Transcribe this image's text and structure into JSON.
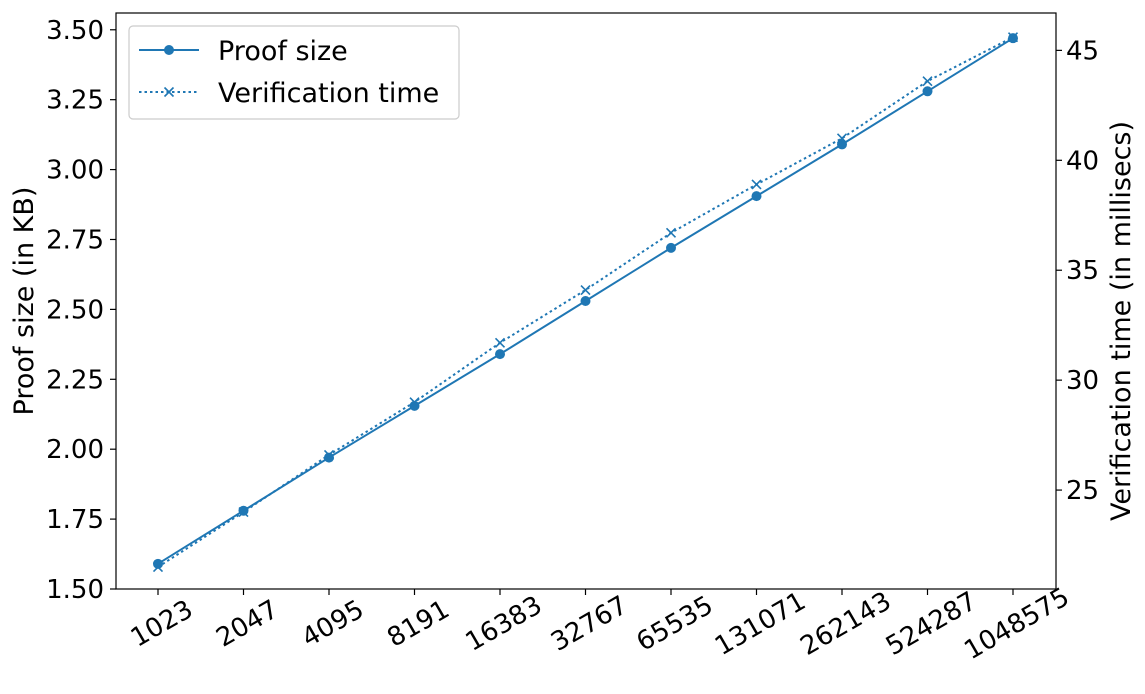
{
  "chart_data": {
    "type": "line",
    "categories": [
      "1023",
      "2047",
      "4095",
      "8191",
      "16383",
      "32767",
      "65535",
      "131071",
      "262143",
      "524287",
      "1048575"
    ],
    "series": [
      {
        "name": "Proof size",
        "axis": "left",
        "marker": "circle",
        "linestyle": "solid",
        "values": [
          1.59,
          1.78,
          1.97,
          2.155,
          2.34,
          2.53,
          2.72,
          2.905,
          3.09,
          3.28,
          3.47
        ]
      },
      {
        "name": "Verification time",
        "axis": "right",
        "marker": "x",
        "linestyle": "dotted",
        "values": [
          21.5,
          24.0,
          26.6,
          29.0,
          31.7,
          34.1,
          36.7,
          38.9,
          41.0,
          43.6,
          45.6
        ]
      }
    ],
    "ylabel": "Proof size (in KB)",
    "ylabel_right": "Verification time (in millisecs)",
    "ylim": [
      1.5,
      3.56
    ],
    "ylim_right": [
      20.5,
      46.7
    ],
    "yticks": [
      1.5,
      1.75,
      2.0,
      2.25,
      2.5,
      2.75,
      3.0,
      3.25,
      3.5
    ],
    "yticks_right": [
      25,
      30,
      35,
      40,
      45
    ],
    "grid": false,
    "legend_position": "top-left",
    "color": "#1f77b4"
  }
}
